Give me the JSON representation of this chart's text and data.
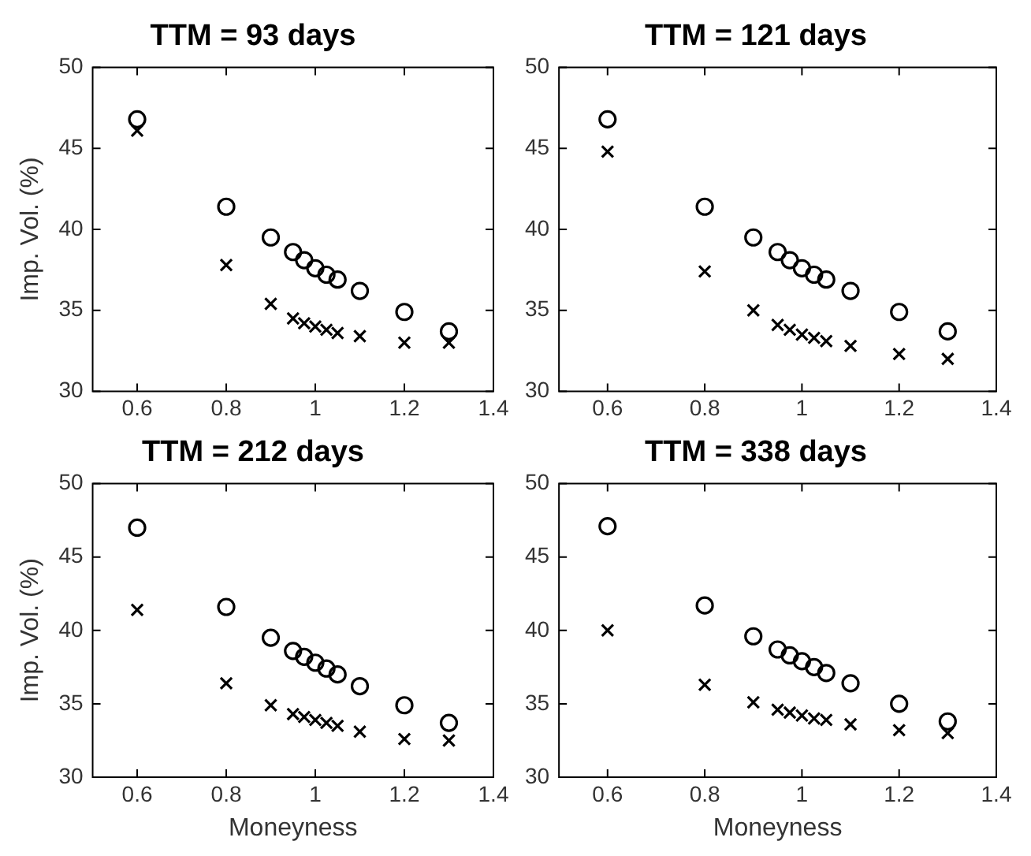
{
  "chart_data": [
    {
      "type": "scatter",
      "title": "TTM = 93 days",
      "ylabel": "Imp. Vol. (%)",
      "x": [
        0.6,
        0.8,
        0.9,
        0.95,
        0.975,
        1.0,
        1.025,
        1.05,
        1.1,
        1.2,
        1.3
      ],
      "xlim": [
        0.5,
        1.4
      ],
      "xticks": [
        0.6,
        0.8,
        1,
        1.2,
        1.4
      ],
      "ylim": [
        30,
        50
      ],
      "yticks": [
        30,
        35,
        40,
        45,
        50
      ],
      "legend": false,
      "series": [
        {
          "color": "#000000",
          "marker": "circle",
          "values": [
            46.8,
            41.4,
            39.5,
            38.6,
            38.1,
            37.6,
            37.2,
            36.9,
            36.2,
            34.9,
            33.7
          ]
        },
        {
          "color": "#000000",
          "marker": "cross",
          "values": [
            46.1,
            37.8,
            35.4,
            34.5,
            34.2,
            34.0,
            33.8,
            33.6,
            33.4,
            33.0,
            33.0
          ]
        }
      ]
    },
    {
      "type": "scatter",
      "title": "TTM = 121 days",
      "x": [
        0.6,
        0.8,
        0.9,
        0.95,
        0.975,
        1.0,
        1.025,
        1.05,
        1.1,
        1.2,
        1.3
      ],
      "xlim": [
        0.5,
        1.4
      ],
      "xticks": [
        0.6,
        0.8,
        1,
        1.2,
        1.4
      ],
      "ylim": [
        30,
        50
      ],
      "yticks": [
        30,
        35,
        40,
        45,
        50
      ],
      "legend": false,
      "series": [
        {
          "color": "#000000",
          "marker": "circle",
          "values": [
            46.8,
            41.4,
            39.5,
            38.6,
            38.1,
            37.6,
            37.2,
            36.9,
            36.2,
            34.9,
            33.7
          ]
        },
        {
          "color": "#000000",
          "marker": "cross",
          "values": [
            44.8,
            37.4,
            35.0,
            34.1,
            33.8,
            33.5,
            33.3,
            33.1,
            32.8,
            32.3,
            32.0
          ]
        }
      ]
    },
    {
      "type": "scatter",
      "title": "TTM = 212 days",
      "xlabel": "Moneyness",
      "ylabel": "Imp. Vol. (%)",
      "x": [
        0.6,
        0.8,
        0.9,
        0.95,
        0.975,
        1.0,
        1.025,
        1.05,
        1.1,
        1.2,
        1.3
      ],
      "xlim": [
        0.5,
        1.4
      ],
      "xticks": [
        0.6,
        0.8,
        1,
        1.2,
        1.4
      ],
      "ylim": [
        30,
        50
      ],
      "yticks": [
        30,
        35,
        40,
        45,
        50
      ],
      "legend": false,
      "series": [
        {
          "color": "#000000",
          "marker": "circle",
          "values": [
            47.0,
            41.6,
            39.5,
            38.6,
            38.2,
            37.8,
            37.4,
            37.0,
            36.2,
            34.9,
            33.7
          ]
        },
        {
          "color": "#000000",
          "marker": "cross",
          "values": [
            41.4,
            36.4,
            34.9,
            34.3,
            34.1,
            33.9,
            33.7,
            33.5,
            33.1,
            32.6,
            32.5
          ]
        }
      ]
    },
    {
      "type": "scatter",
      "title": "TTM = 338 days",
      "xlabel": "Moneyness",
      "x": [
        0.6,
        0.8,
        0.9,
        0.95,
        0.975,
        1.0,
        1.025,
        1.05,
        1.1,
        1.2,
        1.3
      ],
      "xlim": [
        0.5,
        1.4
      ],
      "xticks": [
        0.6,
        0.8,
        1,
        1.2,
        1.4
      ],
      "ylim": [
        30,
        50
      ],
      "yticks": [
        30,
        35,
        40,
        45,
        50
      ],
      "legend": false,
      "series": [
        {
          "color": "#000000",
          "marker": "circle",
          "values": [
            47.1,
            41.7,
            39.6,
            38.7,
            38.3,
            37.9,
            37.5,
            37.1,
            36.4,
            35.0,
            33.8
          ]
        },
        {
          "color": "#000000",
          "marker": "cross",
          "values": [
            40.0,
            36.3,
            35.1,
            34.6,
            34.4,
            34.2,
            34.0,
            33.9,
            33.6,
            33.2,
            33.0
          ]
        }
      ]
    }
  ]
}
